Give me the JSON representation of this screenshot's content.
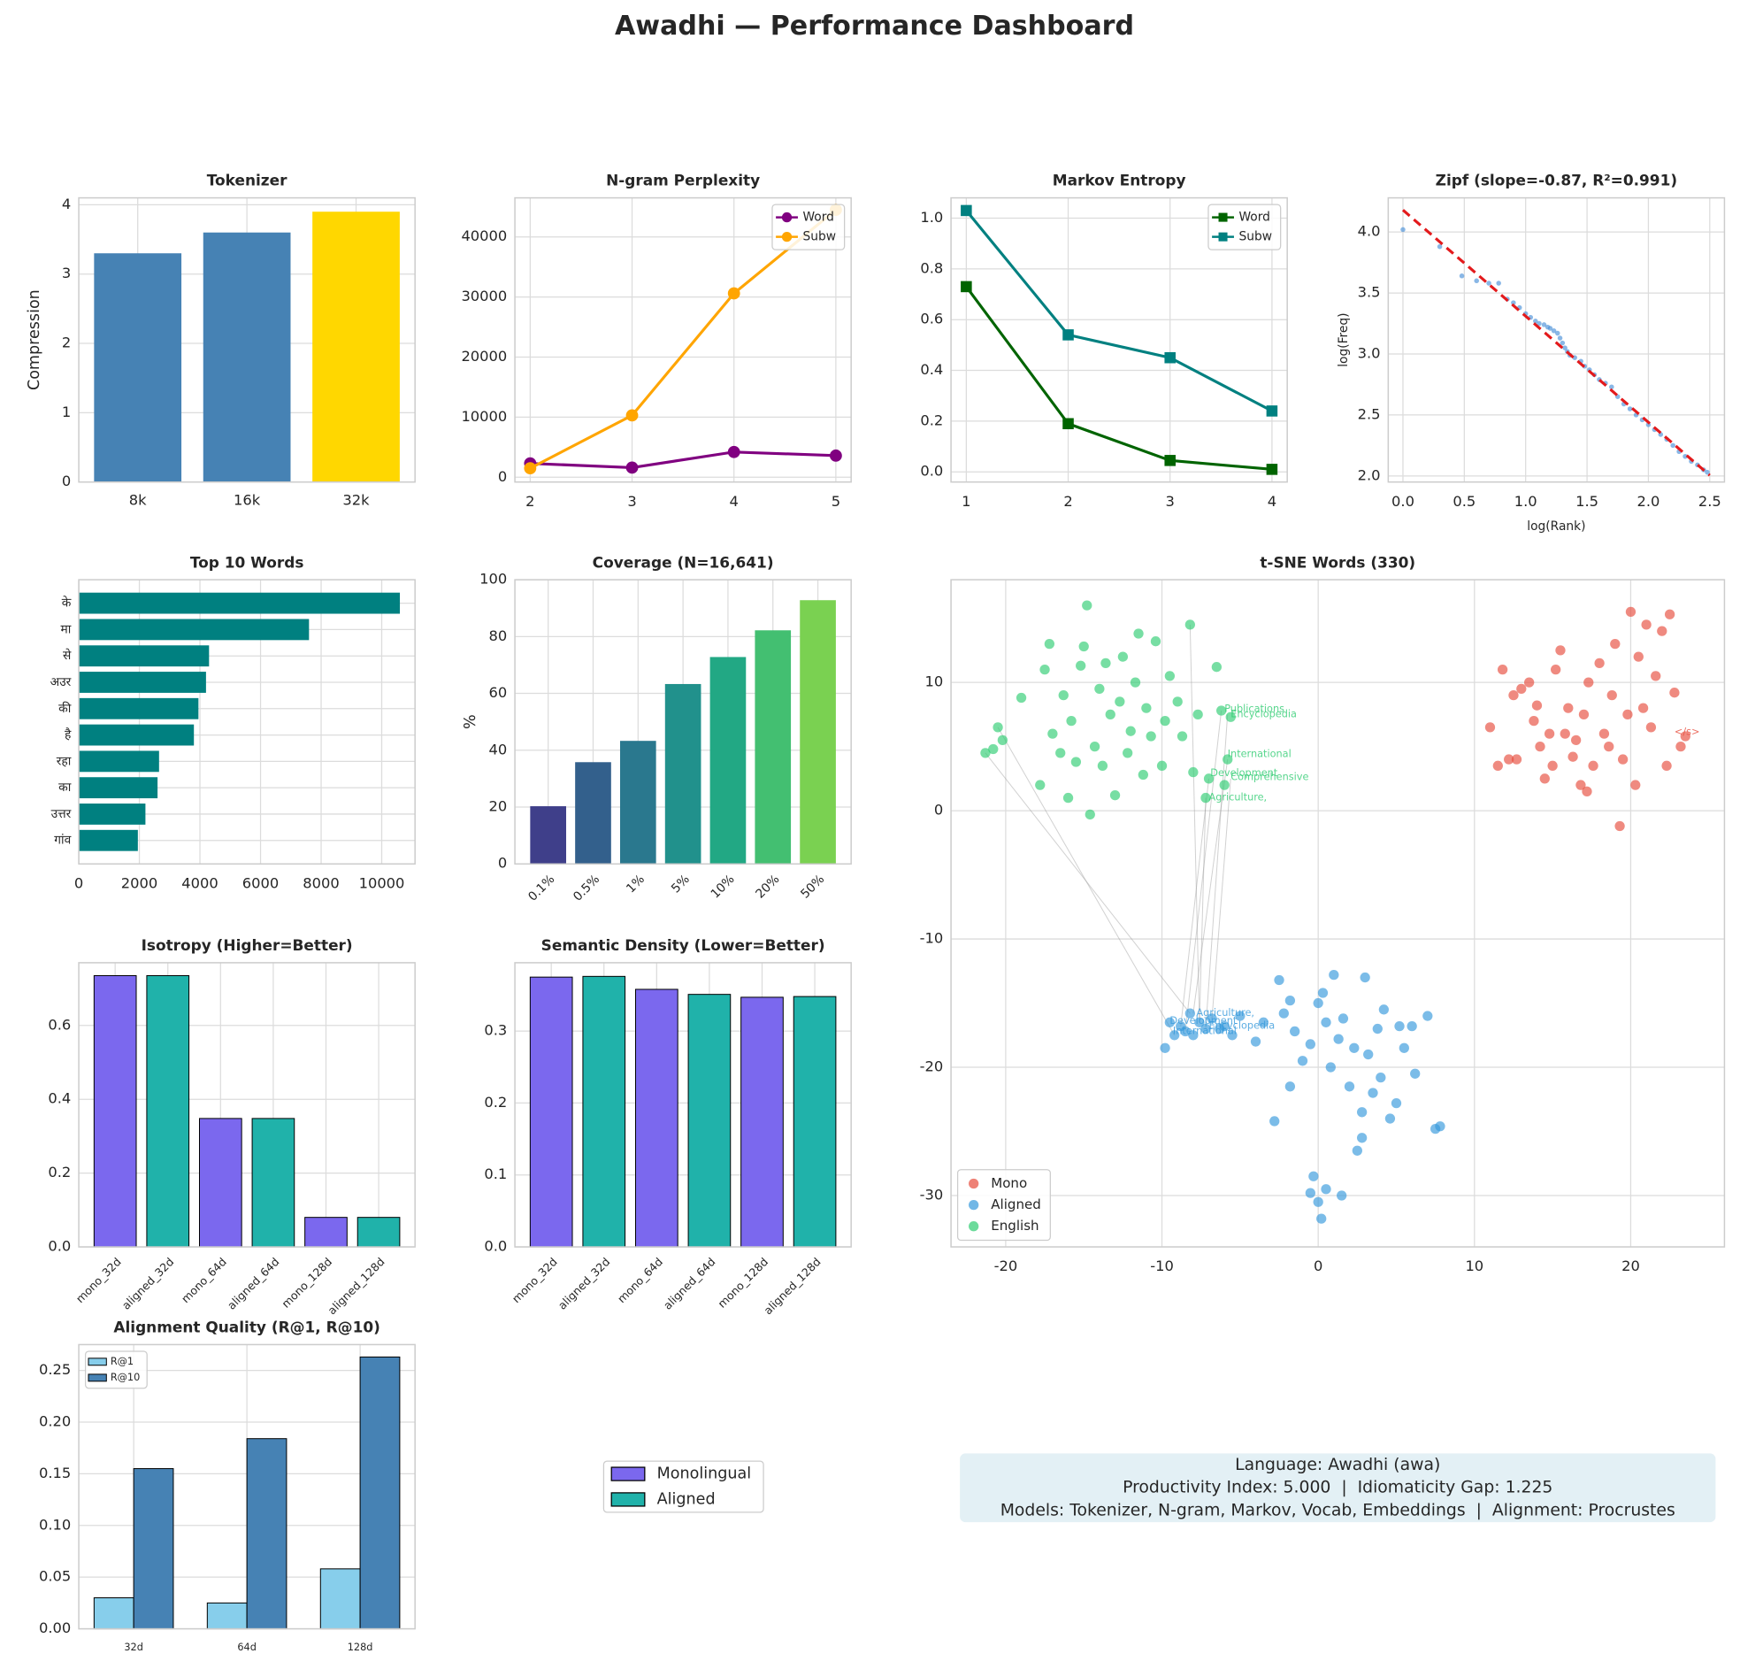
{
  "title": "Awadhi — Performance Dashboard",
  "chart_data": [
    {
      "type": "bar",
      "title": "Tokenizer",
      "ylabel": "Compression",
      "categories": [
        "8k",
        "16k",
        "32k"
      ],
      "values": [
        3.3,
        3.6,
        3.9
      ],
      "colors": [
        "#4682b4",
        "#4682b4",
        "#ffd700"
      ],
      "ylim": [
        0,
        4.1
      ],
      "yticks": [
        0,
        1,
        2,
        3,
        4
      ],
      "grid": true
    },
    {
      "type": "line",
      "title": "N-gram Perplexity",
      "x": [
        2,
        3,
        4,
        5
      ],
      "marker": "circle",
      "series": [
        {
          "name": "Word",
          "color": "#800080",
          "values": [
            2300,
            1600,
            4200,
            3600
          ]
        },
        {
          "name": "Subw",
          "color": "#ffa500",
          "values": [
            1500,
            10300,
            30600,
            44500
          ]
        }
      ],
      "xlim": [
        1.85,
        5.15
      ],
      "xticks": [
        2,
        3,
        4,
        5
      ],
      "ylim": [
        -800,
        46500
      ],
      "yticks": [
        0,
        10000,
        20000,
        30000,
        40000
      ],
      "grid": true,
      "legend": "upper right"
    },
    {
      "type": "line",
      "title": "Markov Entropy",
      "x": [
        1,
        2,
        3,
        4
      ],
      "marker": "square",
      "series": [
        {
          "name": "Word",
          "color": "#006400",
          "values": [
            0.73,
            0.19,
            0.045,
            0.01
          ]
        },
        {
          "name": "Subw",
          "color": "#008080",
          "values": [
            1.03,
            0.54,
            0.45,
            0.24
          ]
        }
      ],
      "xlim": [
        0.85,
        4.15
      ],
      "xticks": [
        1,
        2,
        3,
        4
      ],
      "ylim": [
        -0.04,
        1.08
      ],
      "yticks": [
        {
          "value": 0,
          "label": "0.0"
        },
        0.2,
        0.4,
        0.6,
        0.8,
        {
          "value": 1,
          "label": "1.0"
        }
      ],
      "grid": true,
      "legend": "upper right"
    },
    {
      "type": "scatter",
      "title": "Zipf (slope=-0.87, R²=0.991)",
      "xlabel": "log(Rank)",
      "ylabel": "log(Freq)",
      "series": [
        {
          "color": "#4a90d9",
          "x": [
            0,
            0.3,
            0.48,
            0.6,
            0.7,
            0.78,
            0.85,
            0.9,
            0.95,
            1.0,
            1.04,
            1.08,
            1.11,
            1.15,
            1.18,
            1.2,
            1.23,
            1.26,
            1.28,
            1.3,
            1.32,
            1.34,
            1.36,
            1.4,
            1.45,
            1.48,
            1.52,
            1.56,
            1.6,
            1.65,
            1.7,
            1.75,
            1.8,
            1.85,
            1.9,
            1.95,
            2.0,
            2.05,
            2.1,
            2.15,
            2.2,
            2.25,
            2.3,
            2.35,
            2.4,
            2.45,
            2.48
          ],
          "values": [
            4.02,
            3.88,
            3.64,
            3.6,
            3.58,
            3.58,
            3.45,
            3.42,
            3.38,
            3.33,
            3.3,
            3.27,
            3.25,
            3.24,
            3.22,
            3.21,
            3.19,
            3.17,
            3.13,
            3.09,
            3.05,
            3.02,
            2.99,
            2.97,
            2.94,
            2.9,
            2.87,
            2.83,
            2.79,
            2.76,
            2.73,
            2.65,
            2.59,
            2.55,
            2.5,
            2.46,
            2.42,
            2.38,
            2.34,
            2.3,
            2.25,
            2.2,
            2.16,
            2.12,
            2.09,
            2.05,
            2.03
          ]
        }
      ],
      "fit": {
        "x": [
          0,
          2.5
        ],
        "values": [
          4.18,
          2.005
        ],
        "color": "#e31a1c"
      },
      "xlim": [
        -0.12,
        2.62
      ],
      "xticks": [
        {
          "value": 0,
          "label": "0.0"
        },
        0.5,
        {
          "value": 1,
          "label": "1.0"
        },
        1.5,
        {
          "value": 2,
          "label": "2.0"
        },
        2.5
      ],
      "ylim": [
        1.95,
        4.28
      ],
      "yticks": [
        {
          "value": 2,
          "label": "2.0"
        },
        2.5,
        {
          "value": 3,
          "label": "3.0"
        },
        3.5,
        {
          "value": 4,
          "label": "4.0"
        }
      ],
      "grid": true
    },
    {
      "type": "bar",
      "orientation": "horizontal",
      "title": "Top 10 Words",
      "categories": [
        "के",
        "मा",
        "से",
        "अउर",
        "की",
        "है",
        "रहा",
        "का",
        "उत्तर",
        "गांव"
      ],
      "values": [
        10600,
        7600,
        4300,
        4200,
        3950,
        3800,
        2650,
        2600,
        2200,
        1950
      ],
      "color": "#008080",
      "xlim": [
        0,
        11100
      ],
      "xticks": [
        0,
        2000,
        4000,
        6000,
        8000,
        10000
      ],
      "grid": true
    },
    {
      "type": "bar",
      "title": "Coverage (N=16,641)",
      "ylabel": "%",
      "categories": [
        "0.1%",
        "0.5%",
        "1%",
        "5%",
        "10%",
        "20%",
        "50%"
      ],
      "values": [
        20.3,
        35.8,
        43.3,
        63.3,
        72.8,
        82.2,
        92.8
      ],
      "colors": [
        "#3f3f8a",
        "#33608c",
        "#2a788e",
        "#21918c",
        "#22a884",
        "#43bf71",
        "#7ad151"
      ],
      "ylim": [
        0,
        100
      ],
      "yticks": [
        0,
        20,
        40,
        60,
        80,
        100
      ],
      "grid": true,
      "rotate_labels": true
    },
    {
      "type": "scatter",
      "title": "t-SNE Words (330)",
      "series": [
        {
          "name": "Mono",
          "color": "#e74c3c",
          "x": [
            11,
            11.5,
            11.8,
            12.2,
            12.5,
            13,
            13.5,
            13.8,
            14,
            14.2,
            14.5,
            14.8,
            15,
            15.2,
            15.5,
            15.8,
            16,
            16.3,
            16.5,
            16.8,
            17,
            17.3,
            17.6,
            18,
            18.3,
            18.6,
            18.8,
            19,
            19.3,
            19.5,
            19.8,
            20,
            20.3,
            20.5,
            20.8,
            21,
            21.3,
            21.6,
            22,
            22.3,
            22.5,
            22.8,
            23.2,
            23.5,
            12.7,
            17.2
          ],
          "values": [
            6.5,
            3.5,
            11,
            4,
            9,
            9.5,
            10,
            7,
            8.2,
            5,
            2.5,
            6,
            3.5,
            11,
            12.5,
            6,
            8,
            4.2,
            5.5,
            2,
            7.5,
            10,
            3.5,
            11.5,
            6,
            5,
            9,
            13,
            -1.2,
            4,
            7.5,
            15.5,
            2,
            12,
            8,
            14.5,
            6.5,
            10.5,
            14,
            3.5,
            15.3,
            9.2,
            5,
            5.8,
            4,
            1.5
          ]
        },
        {
          "name": "Aligned",
          "color": "#3498db",
          "x": [
            -9.8,
            -9.5,
            -9.2,
            -8.8,
            -8.5,
            -8.2,
            -8,
            -7.6,
            -7.2,
            -6.8,
            -6.3,
            -6,
            -5.5,
            -5,
            -4,
            -3.5,
            -2.5,
            -2.2,
            -1.8,
            -1.5,
            -1,
            -0.5,
            0,
            0.3,
            0.5,
            0.8,
            1,
            1.3,
            1.6,
            2,
            2.3,
            2.5,
            2.8,
            3,
            3.2,
            3.5,
            3.8,
            4,
            4.2,
            4.6,
            5,
            5.5,
            6,
            6.2,
            7,
            7.5,
            7.8,
            -2.8,
            -0.3,
            0,
            -0.5,
            0.2,
            0.5,
            1.5,
            2.8,
            -1.8,
            5.2
          ],
          "values": [
            -18.5,
            -16.5,
            -17.5,
            -16.8,
            -17.2,
            -15.8,
            -17.5,
            -16.5,
            -17,
            -16.2,
            -17,
            -16.8,
            -17.5,
            -16,
            -18,
            -16.5,
            -13.2,
            -15.8,
            -14.8,
            -17.2,
            -19.5,
            -18.2,
            -15,
            -14.2,
            -16.5,
            -20,
            -12.8,
            -17.8,
            -16.2,
            -21.5,
            -18.5,
            -26.5,
            -23.5,
            -13,
            -19,
            -22,
            -17,
            -20.8,
            -15.5,
            -24,
            -22.8,
            -18.5,
            -16.8,
            -20.5,
            -16,
            -24.8,
            -24.6,
            -24.2,
            -28.5,
            -30.5,
            -29.8,
            -31.8,
            -29.5,
            -30,
            -25.5,
            -21.5,
            -16.8
          ]
        },
        {
          "name": "English",
          "color": "#2ecc71",
          "x": [
            -21.3,
            -20.8,
            -20.5,
            -20.2,
            -19,
            -17.8,
            -17.5,
            -17.2,
            -17,
            -16.5,
            -16.3,
            -16,
            -15.8,
            -15.5,
            -15.2,
            -15,
            -14.8,
            -14.6,
            -14.3,
            -14,
            -13.8,
            -13.6,
            -13.3,
            -13,
            -12.7,
            -12.5,
            -12.2,
            -12,
            -11.7,
            -11.5,
            -11.2,
            -11,
            -10.7,
            -10.4,
            -10,
            -9.8,
            -9.5,
            -9,
            -8.7,
            -8.2,
            -8,
            -7.7,
            -7.2,
            -7,
            -6.5,
            -6.2,
            -5.8,
            -6,
            -5.6
          ],
          "values": [
            4.5,
            4.8,
            6.5,
            5.5,
            8.8,
            2,
            11,
            13,
            6,
            4.5,
            9,
            1,
            7,
            3.8,
            11.3,
            12.8,
            16,
            -0.3,
            5,
            9.5,
            3.5,
            11.5,
            7.5,
            1.2,
            8.5,
            12,
            4.5,
            6.2,
            10,
            13.8,
            2.8,
            8,
            5.8,
            13.2,
            3.5,
            7,
            10.5,
            8.5,
            5.8,
            14.5,
            3,
            7.5,
            1,
            2.5,
            11.2,
            7.8,
            4,
            2,
            7.3
          ]
        }
      ],
      "links": [
        {
          "x": [
            -6.2,
            -8.5
          ],
          "values": [
            7.8,
            -17.2
          ]
        },
        {
          "x": [
            -5.8,
            -7.2
          ],
          "values": [
            7.5,
            -17
          ]
        },
        {
          "x": [
            -5.8,
            -8
          ],
          "values": [
            4,
            -15.8
          ]
        },
        {
          "x": [
            -7,
            -8.8
          ],
          "values": [
            2.5,
            -16.8
          ]
        },
        {
          "x": [
            -7.2,
            -7.6
          ],
          "values": [
            1,
            -16.5
          ]
        },
        {
          "x": [
            -21.3,
            -8.2
          ],
          "values": [
            4.5,
            -15.8
          ]
        },
        {
          "x": [
            -8.2,
            -7.6
          ],
          "values": [
            14.5,
            -16.5
          ]
        },
        {
          "x": [
            -20.5,
            -9.2
          ],
          "values": [
            6.5,
            -17.5
          ]
        },
        {
          "x": [
            -5.6,
            -6.8
          ],
          "values": [
            2.5,
            -16.2
          ]
        }
      ],
      "annotations": [
        {
          "text": "Publications",
          "x": -6.0,
          "y": 7.9,
          "color": "#2ecc71"
        },
        {
          "text": "Encyclopedia",
          "x": -5.6,
          "y": 7.5,
          "color": "#2ecc71"
        },
        {
          "text": "International",
          "x": -5.8,
          "y": 4.4,
          "color": "#2ecc71"
        },
        {
          "text": "Development",
          "x": -6.9,
          "y": 2.9,
          "color": "#2ecc71"
        },
        {
          "text": "Comprehensive",
          "x": -5.6,
          "y": 2.6,
          "color": "#2ecc71"
        },
        {
          "text": "Agriculture,",
          "x": -7.0,
          "y": 1.0,
          "color": "#2ecc71"
        },
        {
          "text": "Agriculture,",
          "x": -7.8,
          "y": -15.8,
          "color": "#3498db"
        },
        {
          "text": "Development",
          "x": -9.5,
          "y": -16.4,
          "color": "#3498db"
        },
        {
          "text": "Encyclopedia",
          "x": -7.0,
          "y": -16.8,
          "color": "#3498db"
        },
        {
          "text": "International",
          "x": -9.3,
          "y": -17.2,
          "color": "#3498db"
        },
        {
          "text": "</s>",
          "x": 22.8,
          "y": 6.1,
          "color": "#e74c3c"
        }
      ],
      "xlim": [
        -23.5,
        26
      ],
      "xticks": [
        -20,
        -10,
        0,
        10,
        20
      ],
      "ylim": [
        -34,
        18
      ],
      "yticks": [
        -30,
        -20,
        -10,
        0,
        10
      ],
      "grid": true,
      "legend": "lower left"
    },
    {
      "type": "bar",
      "title": "Isotropy (Higher=Better)",
      "categories": [
        "mono_32d",
        "aligned_32d",
        "mono_64d",
        "aligned_64d",
        "mono_128d",
        "aligned_128d"
      ],
      "values": [
        0.735,
        0.735,
        0.348,
        0.348,
        0.08,
        0.08
      ],
      "colors": [
        "#7b68ee",
        "#20b2aa",
        "#7b68ee",
        "#20b2aa",
        "#7b68ee",
        "#20b2aa"
      ],
      "edgecolor": "#000000",
      "ylim": [
        0,
        0.77
      ],
      "yticks": [
        {
          "value": 0,
          "label": "0.0"
        },
        0.2,
        0.4,
        0.6
      ],
      "grid": true,
      "rotate_labels": true
    },
    {
      "type": "bar",
      "title": "Semantic Density (Lower=Better)",
      "categories": [
        "mono_32d",
        "aligned_32d",
        "mono_64d",
        "aligned_64d",
        "mono_128d",
        "aligned_128d"
      ],
      "values": [
        0.375,
        0.376,
        0.358,
        0.351,
        0.347,
        0.348
      ],
      "colors": [
        "#7b68ee",
        "#20b2aa",
        "#7b68ee",
        "#20b2aa",
        "#7b68ee",
        "#20b2aa"
      ],
      "edgecolor": "#000000",
      "ylim": [
        0,
        0.395
      ],
      "yticks": [
        {
          "value": 0,
          "label": "0.0"
        },
        0.1,
        0.2,
        0.3
      ],
      "grid": true,
      "rotate_labels": true
    },
    {
      "type": "bar",
      "title": "Alignment Quality (R@1, R@10)",
      "categories": [
        "32d",
        "64d",
        "128d"
      ],
      "series": [
        {
          "name": "R@1",
          "color": "#87ceeb",
          "values": [
            0.03,
            0.025,
            0.058
          ]
        },
        {
          "name": "R@10",
          "color": "#4682b4",
          "values": [
            0.155,
            0.184,
            0.263
          ]
        }
      ],
      "edgecolor": "#000000",
      "ylim": [
        0,
        0.275
      ],
      "yticks": [
        {
          "value": 0,
          "label": "0.00"
        },
        0.05,
        {
          "value": 0.1,
          "label": "0.10"
        },
        0.15,
        {
          "value": 0.2,
          "label": "0.20"
        },
        0.25
      ],
      "grid": true,
      "legend": "upper left"
    },
    {
      "type": "legend",
      "series": [
        {
          "name": "Monolingual",
          "color": "#7b68ee"
        },
        {
          "name": "Aligned",
          "color": "#20b2aa"
        }
      ],
      "edgecolor": "#000000"
    },
    {
      "type": "text",
      "background": "#e3f0f5",
      "lines": [
        "Language: Awadhi (awa)",
        "Productivity Index: 5.000  |  Idiomaticity Gap: 1.225",
        "Models: Tokenizer, N-gram, Markov, Vocab, Embeddings  |  Alignment: Procrustes"
      ]
    }
  ]
}
